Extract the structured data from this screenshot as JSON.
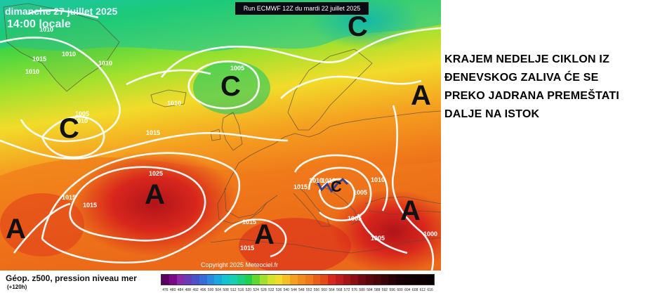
{
  "map": {
    "date": "dimanche 27 juillet 2025",
    "time": "14:00 locale",
    "run": "Run ECMWF 12Z du mardi 22 juillet 2025",
    "copyright": "Copyright 2025 Meteociel.fr",
    "pressure_labels": [
      "1010",
      "1010",
      "1010",
      "1005",
      "1010",
      "1015",
      "1010",
      "1005",
      "1015",
      "1025",
      "1015",
      "1020",
      "1015",
      "1010",
      "1015",
      "1015",
      "1010",
      "1005",
      "1005",
      "1005",
      "1015",
      "1010",
      "1000",
      "1010"
    ],
    "systems": [
      "C",
      "C",
      "C",
      "C",
      "A",
      "A",
      "A",
      "A",
      "A"
    ],
    "colors": {
      "cold_green": "#1ed04a",
      "mid_yellow": "#f2dc2a",
      "warm_orange": "#f07a1a",
      "hot_red": "#d8261c",
      "isobar": "#ffffff"
    }
  },
  "caption": "KRAJEM NEDELJE CIKLON IZ\nĐENEVSKOG ZALIVA ĆE SE\nPREKO JADRANA PREMEŠTATI\nDALJE NA ISTOK",
  "legend": {
    "title": "Géop. z500, pression niveau mer",
    "subtitle": "(+120h)",
    "ticks": [
      "476",
      "480",
      "484",
      "488",
      "492",
      "496",
      "500",
      "504",
      "508",
      "512",
      "516",
      "520",
      "524",
      "528",
      "532",
      "536",
      "540",
      "544",
      "548",
      "552",
      "556",
      "560",
      "564",
      "568",
      "572",
      "576",
      "580",
      "584",
      "588",
      "592",
      "596",
      "600",
      "604",
      "608",
      "612",
      "616"
    ]
  }
}
